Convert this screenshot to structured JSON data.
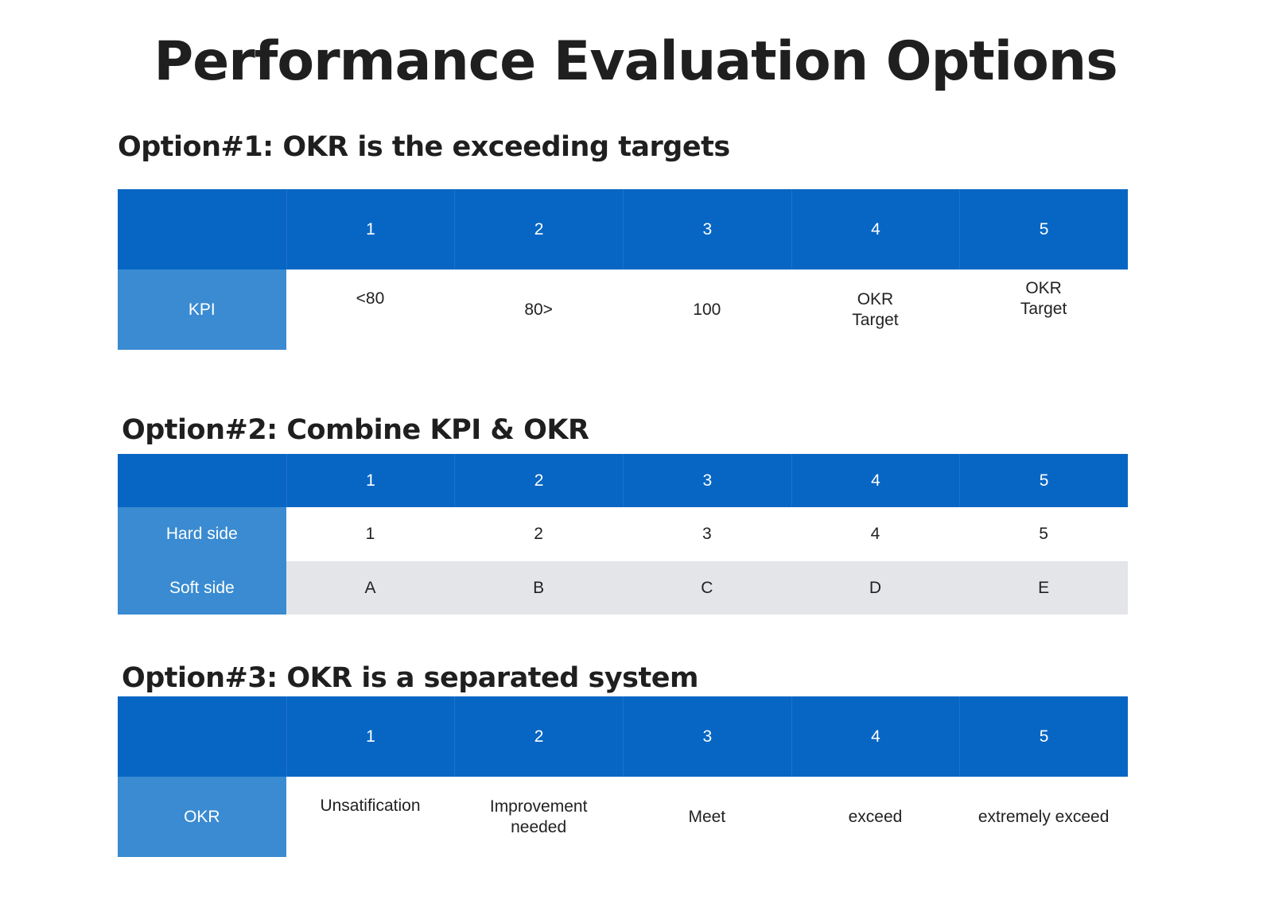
{
  "title": "Performance Evaluation Options",
  "options": [
    {
      "heading": "Option#1: OKR is the exceeding targets",
      "columns": [
        "",
        "1",
        "2",
        "3",
        "4",
        "5"
      ],
      "rows": [
        {
          "label": "KPI",
          "cells": [
            "<80",
            "80>",
            "100",
            "OKR\nTarget",
            "OKR\nTarget"
          ]
        }
      ]
    },
    {
      "heading": "Option#2: Combine KPI & OKR",
      "columns": [
        "",
        "1",
        "2",
        "3",
        "4",
        "5"
      ],
      "rows": [
        {
          "label": "Hard side",
          "cells": [
            "1",
            "2",
            "3",
            "4",
            "5"
          ]
        },
        {
          "label": "Soft side",
          "cells": [
            "A",
            "B",
            "C",
            "D",
            "E"
          ]
        }
      ]
    },
    {
      "heading": "Option#3: OKR is a separated system",
      "columns": [
        "",
        "1",
        "2",
        "3",
        "4",
        "5"
      ],
      "rows": [
        {
          "label": "OKR",
          "cells": [
            "Unsatification",
            "Improvement\nneeded",
            "Meet",
            "exceed",
            "extremely exceed"
          ]
        }
      ]
    }
  ],
  "colors": {
    "header_bg": "#0766c4",
    "label_bg": "#3a8bd1",
    "alt_row_bg": "#e4e5e9"
  }
}
